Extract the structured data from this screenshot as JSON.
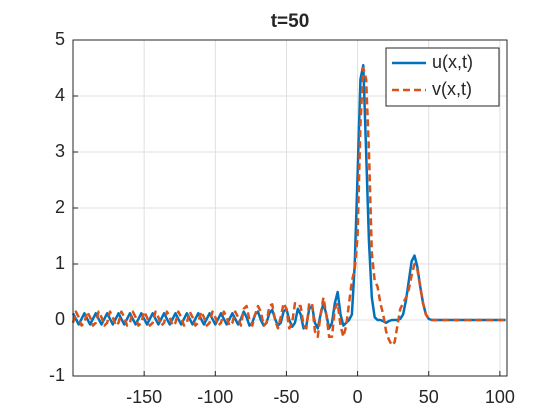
{
  "chart_data": {
    "type": "line",
    "title": "t=50",
    "x": [
      -200,
      -198,
      -196,
      -194,
      -192,
      -190,
      -188,
      -186,
      -184,
      -182,
      -180,
      -178,
      -176,
      -174,
      -172,
      -170,
      -168,
      -166,
      -164,
      -162,
      -160,
      -158,
      -156,
      -154,
      -152,
      -150,
      -148,
      -146,
      -144,
      -142,
      -140,
      -138,
      -136,
      -134,
      -132,
      -130,
      -128,
      -126,
      -124,
      -122,
      -120,
      -118,
      -116,
      -114,
      -112,
      -110,
      -108,
      -106,
      -104,
      -102,
      -100,
      -98,
      -96,
      -94,
      -92,
      -90,
      -88,
      -86,
      -84,
      -82,
      -80,
      -78,
      -76,
      -74,
      -72,
      -70,
      -68,
      -66,
      -64,
      -62,
      -60,
      -58,
      -56,
      -54,
      -52,
      -50,
      -48,
      -46,
      -44,
      -42,
      -40,
      -38,
      -36,
      -34,
      -32,
      -30,
      -28,
      -26,
      -24,
      -22,
      -20,
      -18,
      -16,
      -14,
      -12,
      -10,
      -8,
      -6,
      -4,
      -2,
      0,
      2,
      4,
      6,
      8,
      10,
      12,
      14,
      16,
      18,
      20,
      22,
      24,
      26,
      28,
      30,
      32,
      34,
      36,
      38,
      40,
      42,
      44,
      46,
      48,
      50,
      52,
      54,
      56,
      58,
      60,
      62,
      64,
      66,
      68,
      70,
      72,
      74,
      76,
      78,
      80,
      82,
      84,
      86,
      88,
      90,
      92,
      94,
      96,
      98,
      100,
      102,
      104
    ],
    "series": [
      {
        "name": "u(x,t)",
        "color": "#0072BD",
        "dash": false,
        "values": [
          0.12,
          0.02,
          -0.08,
          0.02,
          0.12,
          0.02,
          -0.08,
          0.02,
          0.12,
          0.02,
          -0.08,
          0.02,
          0.12,
          0.02,
          -0.08,
          0.02,
          0.12,
          0.02,
          -0.08,
          0.02,
          0.12,
          0.02,
          -0.08,
          0.02,
          0.12,
          0.02,
          -0.08,
          0.02,
          0.12,
          0.02,
          -0.08,
          0.02,
          0.12,
          0.02,
          -0.08,
          0.02,
          0.12,
          0.02,
          -0.08,
          0.02,
          0.12,
          0.02,
          -0.08,
          0.02,
          0.12,
          0.02,
          -0.08,
          0.02,
          0.12,
          0.02,
          -0.08,
          0.02,
          0.12,
          0.02,
          -0.08,
          0.02,
          0.12,
          0.02,
          -0.08,
          0.02,
          0.15,
          0.05,
          -0.1,
          -0.05,
          0.1,
          0.15,
          0,
          -0.1,
          -0.05,
          0.12,
          0.18,
          0.02,
          -0.1,
          -0.05,
          0.15,
          0.2,
          0,
          -0.12,
          -0.05,
          0.2,
          0.1,
          -0.15,
          -0.1,
          0.2,
          0.25,
          -0.05,
          -0.15,
          0.1,
          0.3,
          0.1,
          -0.15,
          -0.05,
          0.3,
          0.5,
          0.1,
          -0.1,
          -0.05,
          0,
          0.1,
          1.0,
          2.6,
          4.3,
          4.55,
          3.0,
          1.4,
          0.4,
          0.05,
          0,
          0,
          -0.02,
          -0.05,
          -0.02,
          0,
          0,
          0,
          0.02,
          0.1,
          0.35,
          0.7,
          1.05,
          1.15,
          0.95,
          0.6,
          0.3,
          0.1,
          0.02,
          0,
          0,
          0,
          0,
          0,
          0,
          0,
          0,
          0,
          0,
          0,
          0,
          0,
          0,
          0,
          0,
          0,
          0,
          0,
          0,
          0,
          0,
          0,
          0,
          0,
          0,
          0
        ]
      },
      {
        "name": "v(x,t)",
        "color": "#D95319",
        "dash": true,
        "values": [
          -0.05,
          0.15,
          0.05,
          -0.1,
          -0.05,
          0.15,
          0.05,
          -0.1,
          -0.05,
          0.15,
          0.05,
          -0.1,
          -0.05,
          0.15,
          0.05,
          -0.1,
          -0.05,
          0.15,
          0.05,
          -0.1,
          -0.05,
          0.15,
          0.05,
          -0.1,
          -0.05,
          0.15,
          0.05,
          -0.1,
          -0.05,
          0.15,
          0.05,
          -0.1,
          -0.05,
          0.15,
          0.05,
          -0.1,
          -0.05,
          0.15,
          0.05,
          -0.1,
          -0.05,
          0.15,
          0.05,
          -0.1,
          -0.05,
          0.15,
          0.05,
          -0.1,
          -0.05,
          0.15,
          0.05,
          -0.1,
          -0.05,
          0.15,
          0.05,
          -0.1,
          -0.05,
          0.15,
          0.05,
          -0.1,
          0.2,
          0.25,
          0,
          -0.1,
          0.1,
          0.25,
          0.15,
          -0.1,
          -0.05,
          0.25,
          0.28,
          0,
          -0.15,
          0.05,
          0.3,
          0.2,
          -0.15,
          -0.05,
          0.3,
          0.25,
          0.25,
          -0.1,
          -0.15,
          0.3,
          0.3,
          -0.2,
          -0.3,
          0.1,
          0.4,
          0.1,
          -0.3,
          -0.3,
          0.2,
          0.3,
          -0.1,
          -0.3,
          -0.1,
          0.3,
          0.7,
          0.9,
          1.5,
          3.5,
          4.5,
          4.3,
          3.0,
          1.2,
          0.7,
          0.6,
          0.3,
          0.1,
          -0.2,
          -0.35,
          -0.45,
          -0.4,
          -0.1,
          0.2,
          0.3,
          0.4,
          0.55,
          0.8,
          1.0,
          0.9,
          0.6,
          0.3,
          0.1,
          0.02,
          0,
          0,
          0,
          0,
          0,
          0,
          0,
          0,
          0,
          0,
          0,
          0,
          0,
          0,
          0,
          0,
          0,
          0,
          0,
          0,
          0,
          0,
          0,
          0,
          0,
          0,
          0
        ]
      }
    ],
    "xlim": [
      -200,
      105
    ],
    "xticks": [
      -150,
      -100,
      -50,
      0,
      50,
      100
    ],
    "ylim": [
      -1,
      5
    ],
    "yticks": [
      -1,
      0,
      1,
      2,
      3,
      4,
      5
    ],
    "grid": true,
    "legend": "northeast"
  }
}
